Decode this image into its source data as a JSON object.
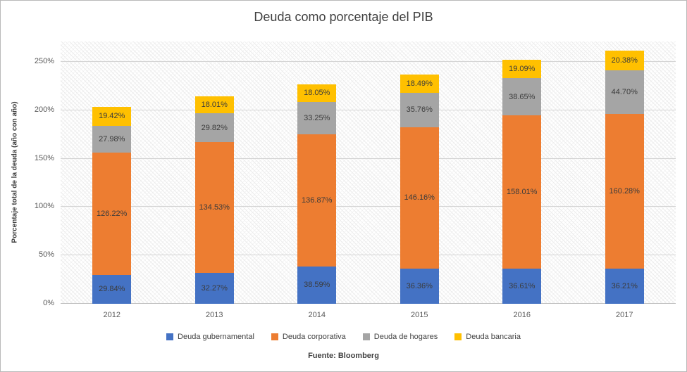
{
  "title": "Deuda como porcentaje del PIB",
  "y_axis_label": "Porcentaje total de la deuda (año con año)",
  "source": "Fuente: Bloomberg",
  "chart_data": {
    "type": "bar",
    "stacked": true,
    "title": "Deuda como porcentaje del PIB",
    "ylabel": "Porcentaje total de la deuda (año con año)",
    "xlabel": "",
    "categories": [
      "2012",
      "2013",
      "2014",
      "2015",
      "2016",
      "2017"
    ],
    "series": [
      {
        "name": "Deuda gubernamental",
        "color": "#4472C4",
        "values": [
          29.84,
          32.27,
          38.59,
          36.36,
          36.61,
          36.21
        ]
      },
      {
        "name": "Deuda corporativa",
        "color": "#ED7D31",
        "values": [
          126.22,
          134.53,
          136.87,
          146.16,
          158.01,
          160.28
        ]
      },
      {
        "name": "Deuda de hogares",
        "color": "#A5A5A5",
        "values": [
          27.98,
          29.82,
          33.25,
          35.76,
          38.65,
          44.7
        ]
      },
      {
        "name": "Deuda bancaria",
        "color": "#FFC000",
        "values": [
          19.42,
          18.01,
          18.05,
          18.49,
          19.09,
          20.38
        ]
      }
    ],
    "yticks": [
      0,
      50,
      100,
      150,
      200,
      250
    ],
    "ytick_labels": [
      "0%",
      "50%",
      "100%",
      "150%",
      "200%",
      "250%"
    ],
    "ylim": [
      0,
      271
    ],
    "grid": true,
    "legend_position": "bottom",
    "data_label_format": "0.00%"
  }
}
